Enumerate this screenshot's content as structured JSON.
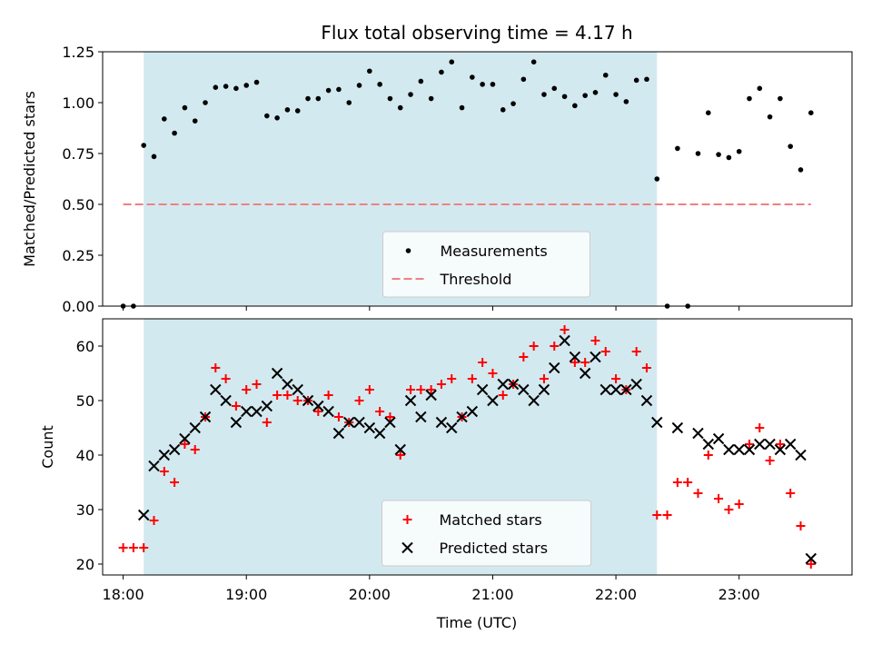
{
  "chart_data": {
    "type": "scatter",
    "title": "Flux total observing time = 4.17 h",
    "x_unit": "UTC",
    "x_tick_labels": [
      "18:00",
      "19:00",
      "20:00",
      "21:00",
      "22:00",
      "23:00"
    ],
    "xlabel": "Time (UTC)",
    "xlim": [
      "17:50",
      "23:55"
    ],
    "observing_window": {
      "start": "18:10",
      "end": "22:20",
      "color": "#d3e9f0"
    },
    "panels": [
      {
        "ylabel": "Matched/Predicted stars",
        "ylim": [
          0,
          1.25
        ],
        "y_tick_labels": [
          "0.00",
          "0.25",
          "0.50",
          "0.75",
          "1.00",
          "1.25"
        ],
        "legend": {
          "position": "lower center",
          "entries": [
            "Measurements",
            "Threshold"
          ]
        },
        "threshold": {
          "value": 0.5,
          "x_start": "18:00",
          "x_end": "23:35",
          "color": "#f08080"
        },
        "series": [
          {
            "name": "Measurements",
            "marker": "dot",
            "color": "#000000",
            "points": [
              [
                "18:00",
                0.0
              ],
              [
                "18:05",
                0.0
              ],
              [
                "18:10",
                0.79
              ],
              [
                "18:15",
                0.735
              ],
              [
                "18:20",
                0.92
              ],
              [
                "18:25",
                0.85
              ],
              [
                "18:30",
                0.975
              ],
              [
                "18:35",
                0.91
              ],
              [
                "18:40",
                1.0
              ],
              [
                "18:45",
                1.075
              ],
              [
                "18:50",
                1.08
              ],
              [
                "18:55",
                1.07
              ],
              [
                "19:00",
                1.085
              ],
              [
                "19:05",
                1.1
              ],
              [
                "19:10",
                0.935
              ],
              [
                "19:15",
                0.925
              ],
              [
                "19:20",
                0.965
              ],
              [
                "19:25",
                0.96
              ],
              [
                "19:30",
                1.02
              ],
              [
                "19:35",
                1.02
              ],
              [
                "19:40",
                1.06
              ],
              [
                "19:45",
                1.065
              ],
              [
                "19:50",
                1.0
              ],
              [
                "19:55",
                1.085
              ],
              [
                "20:00",
                1.155
              ],
              [
                "20:05",
                1.09
              ],
              [
                "20:10",
                1.02
              ],
              [
                "20:15",
                0.975
              ],
              [
                "20:20",
                1.04
              ],
              [
                "20:25",
                1.105
              ],
              [
                "20:30",
                1.02
              ],
              [
                "20:35",
                1.15
              ],
              [
                "20:40",
                1.2
              ],
              [
                "20:45",
                0.975
              ],
              [
                "20:50",
                1.125
              ],
              [
                "20:55",
                1.09
              ],
              [
                "21:00",
                1.09
              ],
              [
                "21:05",
                0.965
              ],
              [
                "21:10",
                0.995
              ],
              [
                "21:15",
                1.115
              ],
              [
                "21:20",
                1.2
              ],
              [
                "21:25",
                1.04
              ],
              [
                "21:30",
                1.07
              ],
              [
                "21:35",
                1.03
              ],
              [
                "21:40",
                0.985
              ],
              [
                "21:45",
                1.035
              ],
              [
                "21:50",
                1.05
              ],
              [
                "21:55",
                1.135
              ],
              [
                "22:00",
                1.04
              ],
              [
                "22:05",
                1.005
              ],
              [
                "22:10",
                1.11
              ],
              [
                "22:15",
                1.115
              ],
              [
                "22:20",
                0.625
              ],
              [
                "22:25",
                0.0
              ],
              [
                "22:30",
                0.775
              ],
              [
                "22:35",
                0.0
              ],
              [
                "22:40",
                0.75
              ],
              [
                "22:45",
                0.95
              ],
              [
                "22:50",
                0.745
              ],
              [
                "22:55",
                0.73
              ],
              [
                "23:00",
                0.76
              ],
              [
                "23:05",
                1.02
              ],
              [
                "23:10",
                1.07
              ],
              [
                "23:15",
                0.93
              ],
              [
                "23:20",
                1.02
              ],
              [
                "23:25",
                0.785
              ],
              [
                "23:30",
                0.67
              ],
              [
                "23:35",
                0.95
              ]
            ]
          }
        ]
      },
      {
        "ylabel": "Count",
        "ylim": [
          18,
          65
        ],
        "y_tick_labels": [
          "20",
          "30",
          "40",
          "50",
          "60"
        ],
        "legend": {
          "position": "lower center",
          "entries": [
            "Matched stars",
            "Predicted stars"
          ]
        },
        "series": [
          {
            "name": "Matched stars",
            "marker": "plus",
            "color": "#ff0000",
            "points": [
              [
                "18:00",
                23
              ],
              [
                "18:05",
                23
              ],
              [
                "18:10",
                23
              ],
              [
                "18:15",
                28
              ],
              [
                "18:20",
                37
              ],
              [
                "18:25",
                35
              ],
              [
                "18:30",
                42
              ],
              [
                "18:35",
                41
              ],
              [
                "18:40",
                47
              ],
              [
                "18:45",
                56
              ],
              [
                "18:50",
                54
              ],
              [
                "18:55",
                49
              ],
              [
                "19:00",
                52
              ],
              [
                "19:05",
                53
              ],
              [
                "19:10",
                46
              ],
              [
                "19:15",
                51
              ],
              [
                "19:20",
                51
              ],
              [
                "19:25",
                50
              ],
              [
                "19:30",
                50
              ],
              [
                "19:35",
                48
              ],
              [
                "19:40",
                51
              ],
              [
                "19:45",
                47
              ],
              [
                "19:50",
                46
              ],
              [
                "19:55",
                50
              ],
              [
                "20:00",
                52
              ],
              [
                "20:05",
                48
              ],
              [
                "20:10",
                47
              ],
              [
                "20:15",
                40
              ],
              [
                "20:20",
                52
              ],
              [
                "20:25",
                52
              ],
              [
                "20:30",
                52
              ],
              [
                "20:35",
                53
              ],
              [
                "20:40",
                54
              ],
              [
                "20:45",
                47
              ],
              [
                "20:50",
                54
              ],
              [
                "20:55",
                57
              ],
              [
                "21:00",
                55
              ],
              [
                "21:05",
                51
              ],
              [
                "21:10",
                53
              ],
              [
                "21:15",
                58
              ],
              [
                "21:20",
                60
              ],
              [
                "21:25",
                54
              ],
              [
                "21:30",
                60
              ],
              [
                "21:35",
                63
              ],
              [
                "21:40",
                57
              ],
              [
                "21:45",
                57
              ],
              [
                "21:50",
                61
              ],
              [
                "21:55",
                59
              ],
              [
                "22:00",
                54
              ],
              [
                "22:05",
                52
              ],
              [
                "22:10",
                59
              ],
              [
                "22:15",
                56
              ],
              [
                "22:20",
                29
              ],
              [
                "22:25",
                29
              ],
              [
                "22:30",
                35
              ],
              [
                "22:35",
                35
              ],
              [
                "22:40",
                33
              ],
              [
                "22:45",
                40
              ],
              [
                "22:50",
                32
              ],
              [
                "22:55",
                30
              ],
              [
                "23:00",
                31
              ],
              [
                "23:05",
                42
              ],
              [
                "23:10",
                45
              ],
              [
                "23:15",
                39
              ],
              [
                "23:20",
                42
              ],
              [
                "23:25",
                33
              ],
              [
                "23:30",
                27
              ],
              [
                "23:35",
                20
              ]
            ]
          },
          {
            "name": "Predicted stars",
            "marker": "x",
            "color": "#000000",
            "points": [
              [
                "18:10",
                29
              ],
              [
                "18:15",
                38
              ],
              [
                "18:20",
                40
              ],
              [
                "18:25",
                41
              ],
              [
                "18:30",
                43
              ],
              [
                "18:35",
                45
              ],
              [
                "18:40",
                47
              ],
              [
                "18:45",
                52
              ],
              [
                "18:50",
                50
              ],
              [
                "18:55",
                46
              ],
              [
                "19:00",
                48
              ],
              [
                "19:05",
                48
              ],
              [
                "19:10",
                49
              ],
              [
                "19:15",
                55
              ],
              [
                "19:20",
                53
              ],
              [
                "19:25",
                52
              ],
              [
                "19:30",
                50
              ],
              [
                "19:35",
                49
              ],
              [
                "19:40",
                48
              ],
              [
                "19:45",
                44
              ],
              [
                "19:50",
                46
              ],
              [
                "19:55",
                46
              ],
              [
                "20:00",
                45
              ],
              [
                "20:05",
                44
              ],
              [
                "20:10",
                46
              ],
              [
                "20:15",
                41
              ],
              [
                "20:20",
                50
              ],
              [
                "20:25",
                47
              ],
              [
                "20:30",
                51
              ],
              [
                "20:35",
                46
              ],
              [
                "20:40",
                45
              ],
              [
                "20:45",
                47
              ],
              [
                "20:50",
                48
              ],
              [
                "20:55",
                52
              ],
              [
                "21:00",
                50
              ],
              [
                "21:05",
                53
              ],
              [
                "21:10",
                53
              ],
              [
                "21:15",
                52
              ],
              [
                "21:20",
                50
              ],
              [
                "21:25",
                52
              ],
              [
                "21:30",
                56
              ],
              [
                "21:35",
                61
              ],
              [
                "21:40",
                58
              ],
              [
                "21:45",
                55
              ],
              [
                "21:50",
                58
              ],
              [
                "21:55",
                52
              ],
              [
                "22:00",
                52
              ],
              [
                "22:05",
                52
              ],
              [
                "22:10",
                53
              ],
              [
                "22:15",
                50
              ],
              [
                "22:20",
                46
              ],
              [
                "22:30",
                45
              ],
              [
                "22:40",
                44
              ],
              [
                "22:45",
                42
              ],
              [
                "22:50",
                43
              ],
              [
                "22:55",
                41
              ],
              [
                "23:00",
                41
              ],
              [
                "23:05",
                41
              ],
              [
                "23:10",
                42
              ],
              [
                "23:15",
                42
              ],
              [
                "23:20",
                41
              ],
              [
                "23:25",
                42
              ],
              [
                "23:30",
                40
              ],
              [
                "23:35",
                21
              ]
            ]
          }
        ]
      }
    ]
  }
}
